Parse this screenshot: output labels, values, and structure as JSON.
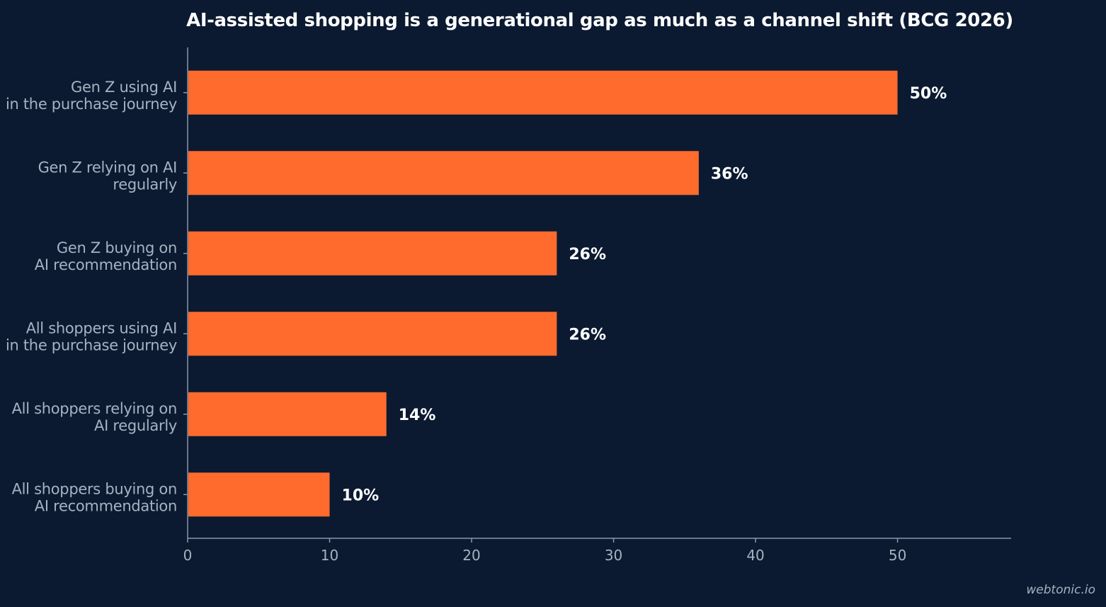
{
  "chart_data": {
    "type": "bar",
    "orientation": "horizontal",
    "title": "AI-assisted shopping is a generational gap as much as a channel shift (BCG 2026)",
    "xlabel": "",
    "ylabel": "",
    "categories": [
      [
        "Gen Z using AI",
        "in the purchase journey"
      ],
      [
        "Gen Z relying on AI",
        "regularly"
      ],
      [
        "Gen Z buying on",
        "AI recommendation"
      ],
      [
        "All shoppers using AI",
        "in the purchase journey"
      ],
      [
        "All shoppers relying on",
        "AI regularly"
      ],
      [
        "All shoppers buying on",
        "AI recommendation"
      ]
    ],
    "values": [
      50,
      36,
      26,
      26,
      14,
      10
    ],
    "value_labels": [
      "50%",
      "36%",
      "26%",
      "26%",
      "14%",
      "10%"
    ],
    "xlim": [
      0,
      58
    ],
    "xticks": [
      0,
      10,
      20,
      30,
      40,
      50
    ],
    "grid": false,
    "legend": "none"
  },
  "colors": {
    "background": "#0b1a31",
    "bar": "#ff6b2d",
    "title": "#ffffff",
    "value_label": "#ffffff",
    "category_label": "#a7b2c2",
    "tick_label": "#a7b2c2",
    "axis": "#8c97a8"
  },
  "watermark": "webtonic.io"
}
